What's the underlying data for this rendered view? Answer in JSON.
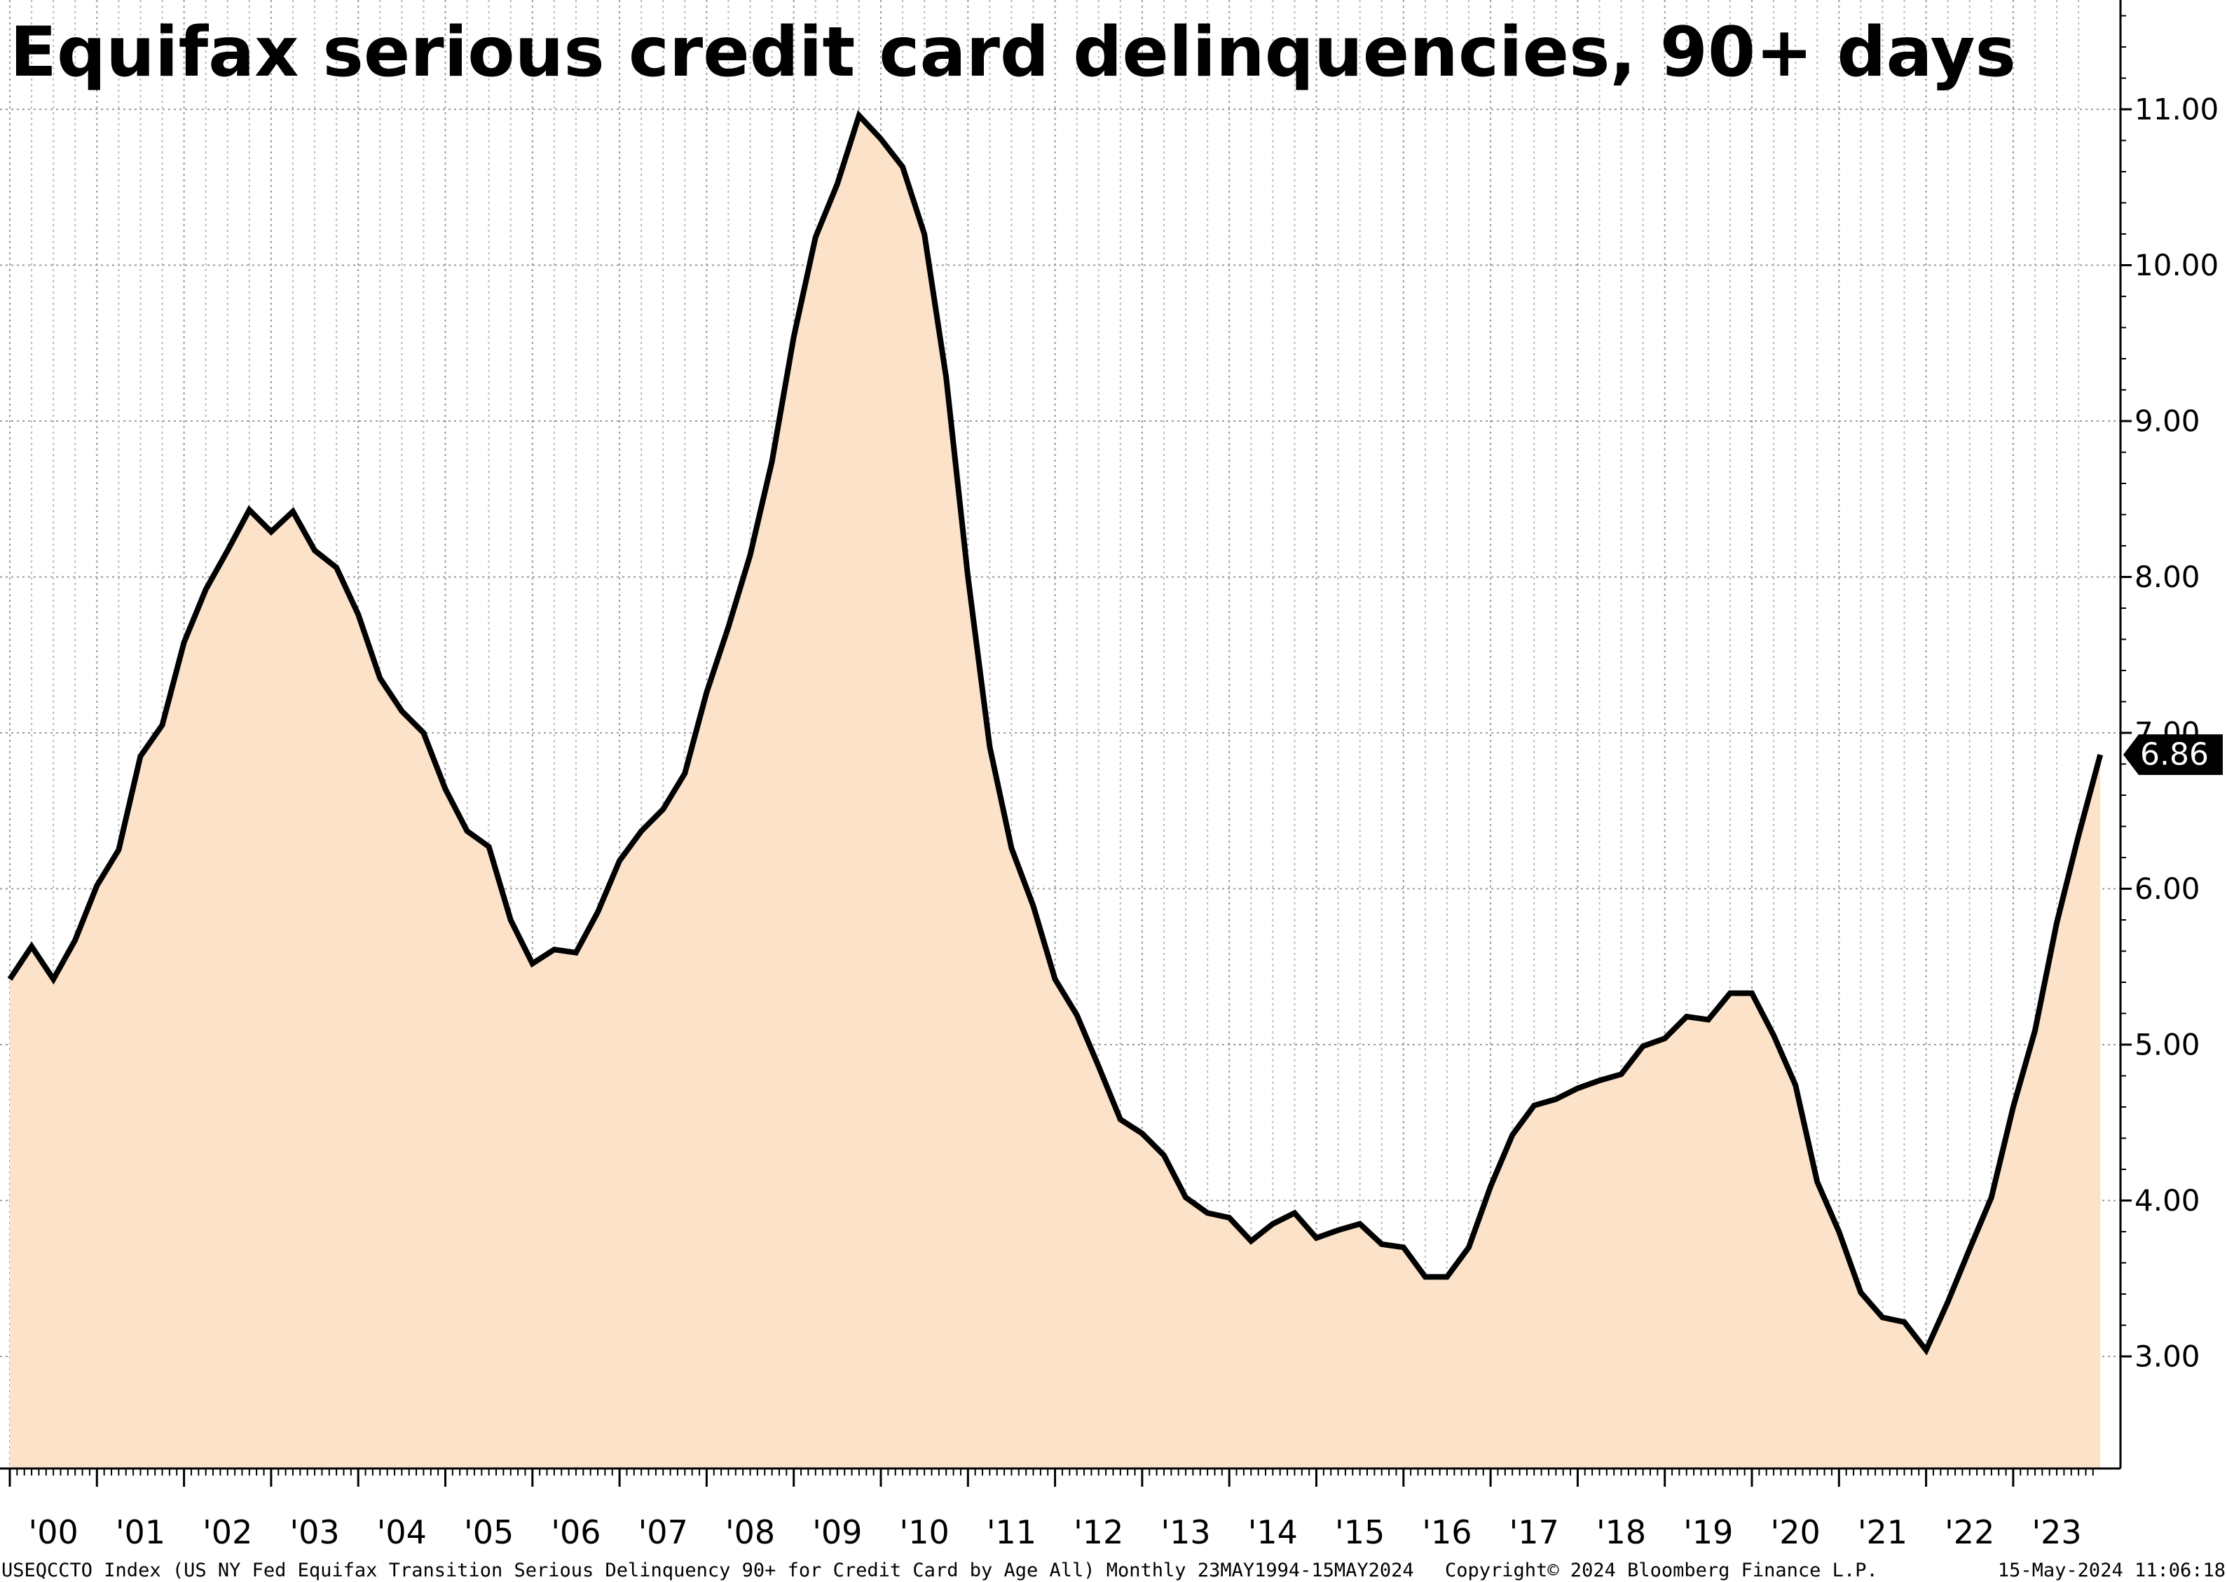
{
  "chart_data": {
    "type": "area",
    "title": "Equifax serious credit card delinquencies, 90+ days",
    "ylim": [
      2.3,
      11.7
    ],
    "y_ticks": [
      {
        "value": 3,
        "label": "3.00"
      },
      {
        "value": 4,
        "label": "4.00"
      },
      {
        "value": 5,
        "label": "5.00"
      },
      {
        "value": 6,
        "label": "6.00"
      },
      {
        "value": 7,
        "label": "7.00"
      },
      {
        "value": 8,
        "label": "8.00"
      },
      {
        "value": 9,
        "label": "9.00"
      },
      {
        "value": 10,
        "label": "10.00"
      },
      {
        "value": 11,
        "label": "11.00"
      }
    ],
    "x_ticks": [
      {
        "year": 2000,
        "label": "'00"
      },
      {
        "year": 2001,
        "label": "'01"
      },
      {
        "year": 2002,
        "label": "'02"
      },
      {
        "year": 2003,
        "label": "'03"
      },
      {
        "year": 2004,
        "label": "'04"
      },
      {
        "year": 2005,
        "label": "'05"
      },
      {
        "year": 2006,
        "label": "'06"
      },
      {
        "year": 2007,
        "label": "'07"
      },
      {
        "year": 2008,
        "label": "'08"
      },
      {
        "year": 2009,
        "label": "'09"
      },
      {
        "year": 2010,
        "label": "'10"
      },
      {
        "year": 2011,
        "label": "'11"
      },
      {
        "year": 2012,
        "label": "'12"
      },
      {
        "year": 2013,
        "label": "'13"
      },
      {
        "year": 2014,
        "label": "'14"
      },
      {
        "year": 2015,
        "label": "'15"
      },
      {
        "year": 2016,
        "label": "'16"
      },
      {
        "year": 2017,
        "label": "'17"
      },
      {
        "year": 2018,
        "label": "'18"
      },
      {
        "year": 2019,
        "label": "'19"
      },
      {
        "year": 2020,
        "label": "'20"
      },
      {
        "year": 2021,
        "label": "'21"
      },
      {
        "year": 2022,
        "label": "'22"
      },
      {
        "year": 2023,
        "label": "'23"
      }
    ],
    "grid": true,
    "fill_color": "#fbe2c8",
    "line_color": "#000000",
    "last_value_label": "6.86",
    "series": [
      {
        "points": [
          [
            "2000-01",
            5.42
          ],
          [
            "2000-04",
            5.63
          ],
          [
            "2000-07",
            5.42
          ],
          [
            "2000-10",
            5.67
          ],
          [
            "2001-01",
            6.02
          ],
          [
            "2001-04",
            6.25
          ],
          [
            "2001-07",
            6.85
          ],
          [
            "2001-10",
            7.05
          ],
          [
            "2002-01",
            7.58
          ],
          [
            "2002-04",
            7.92
          ],
          [
            "2002-07",
            8.17
          ],
          [
            "2002-10",
            8.43
          ],
          [
            "2003-01",
            8.29
          ],
          [
            "2003-04",
            8.42
          ],
          [
            "2003-07",
            8.17
          ],
          [
            "2003-10",
            8.06
          ],
          [
            "2004-01",
            7.76
          ],
          [
            "2004-04",
            7.35
          ],
          [
            "2004-07",
            7.14
          ],
          [
            "2004-10",
            7.0
          ],
          [
            "2005-01",
            6.64
          ],
          [
            "2005-04",
            6.37
          ],
          [
            "2005-07",
            6.27
          ],
          [
            "2005-10",
            5.8
          ],
          [
            "2006-01",
            5.52
          ],
          [
            "2006-04",
            5.61
          ],
          [
            "2006-07",
            5.59
          ],
          [
            "2006-10",
            5.85
          ],
          [
            "2007-01",
            6.18
          ],
          [
            "2007-04",
            6.37
          ],
          [
            "2007-07",
            6.51
          ],
          [
            "2007-10",
            6.74
          ],
          [
            "2008-01",
            7.26
          ],
          [
            "2008-04",
            7.68
          ],
          [
            "2008-07",
            8.14
          ],
          [
            "2008-10",
            8.74
          ],
          [
            "2009-01",
            9.54
          ],
          [
            "2009-04",
            10.18
          ],
          [
            "2009-07",
            10.52
          ],
          [
            "2009-10",
            10.96
          ],
          [
            "2010-01",
            10.81
          ],
          [
            "2010-04",
            10.63
          ],
          [
            "2010-07",
            10.2
          ],
          [
            "2010-10",
            9.28
          ],
          [
            "2011-01",
            8.0
          ],
          [
            "2011-04",
            6.91
          ],
          [
            "2011-07",
            6.26
          ],
          [
            "2011-10",
            5.89
          ],
          [
            "2012-01",
            5.42
          ],
          [
            "2012-04",
            5.19
          ],
          [
            "2012-07",
            4.86
          ],
          [
            "2012-10",
            4.52
          ],
          [
            "2013-01",
            4.43
          ],
          [
            "2013-04",
            4.29
          ],
          [
            "2013-07",
            4.02
          ],
          [
            "2013-10",
            3.92
          ],
          [
            "2014-01",
            3.89
          ],
          [
            "2014-04",
            3.74
          ],
          [
            "2014-07",
            3.85
          ],
          [
            "2014-10",
            3.92
          ],
          [
            "2015-01",
            3.76
          ],
          [
            "2015-04",
            3.81
          ],
          [
            "2015-07",
            3.85
          ],
          [
            "2015-10",
            3.72
          ],
          [
            "2016-01",
            3.7
          ],
          [
            "2016-04",
            3.51
          ],
          [
            "2016-07",
            3.51
          ],
          [
            "2016-10",
            3.7
          ],
          [
            "2017-01",
            4.09
          ],
          [
            "2017-04",
            4.42
          ],
          [
            "2017-07",
            4.61
          ],
          [
            "2017-10",
            4.65
          ],
          [
            "2018-01",
            4.72
          ],
          [
            "2018-04",
            4.77
          ],
          [
            "2018-07",
            4.81
          ],
          [
            "2018-10",
            4.99
          ],
          [
            "2019-01",
            5.04
          ],
          [
            "2019-04",
            5.18
          ],
          [
            "2019-07",
            5.16
          ],
          [
            "2019-10",
            5.33
          ],
          [
            "2020-01",
            5.33
          ],
          [
            "2020-04",
            5.06
          ],
          [
            "2020-07",
            4.74
          ],
          [
            "2020-10",
            4.12
          ],
          [
            "2021-01",
            3.8
          ],
          [
            "2021-04",
            3.41
          ],
          [
            "2021-07",
            3.25
          ],
          [
            "2021-10",
            3.22
          ],
          [
            "2022-01",
            3.04
          ],
          [
            "2022-04",
            3.35
          ],
          [
            "2022-07",
            3.69
          ],
          [
            "2022-10",
            4.02
          ],
          [
            "2023-01",
            4.6
          ],
          [
            "2023-04",
            5.09
          ],
          [
            "2023-07",
            5.78
          ],
          [
            "2023-10",
            6.34
          ],
          [
            "2024-01",
            6.86
          ]
        ]
      }
    ]
  },
  "footer": {
    "source": "USEQCCTO Index (US NY Fed Equifax Transition Serious Delinquency 90+ for Credit Card by Age All)  Monthly 23MAY1994-15MAY2024",
    "copyright": "Copyright© 2024 Bloomberg Finance L.P.",
    "timestamp": "15-May-2024 11:06:18"
  }
}
